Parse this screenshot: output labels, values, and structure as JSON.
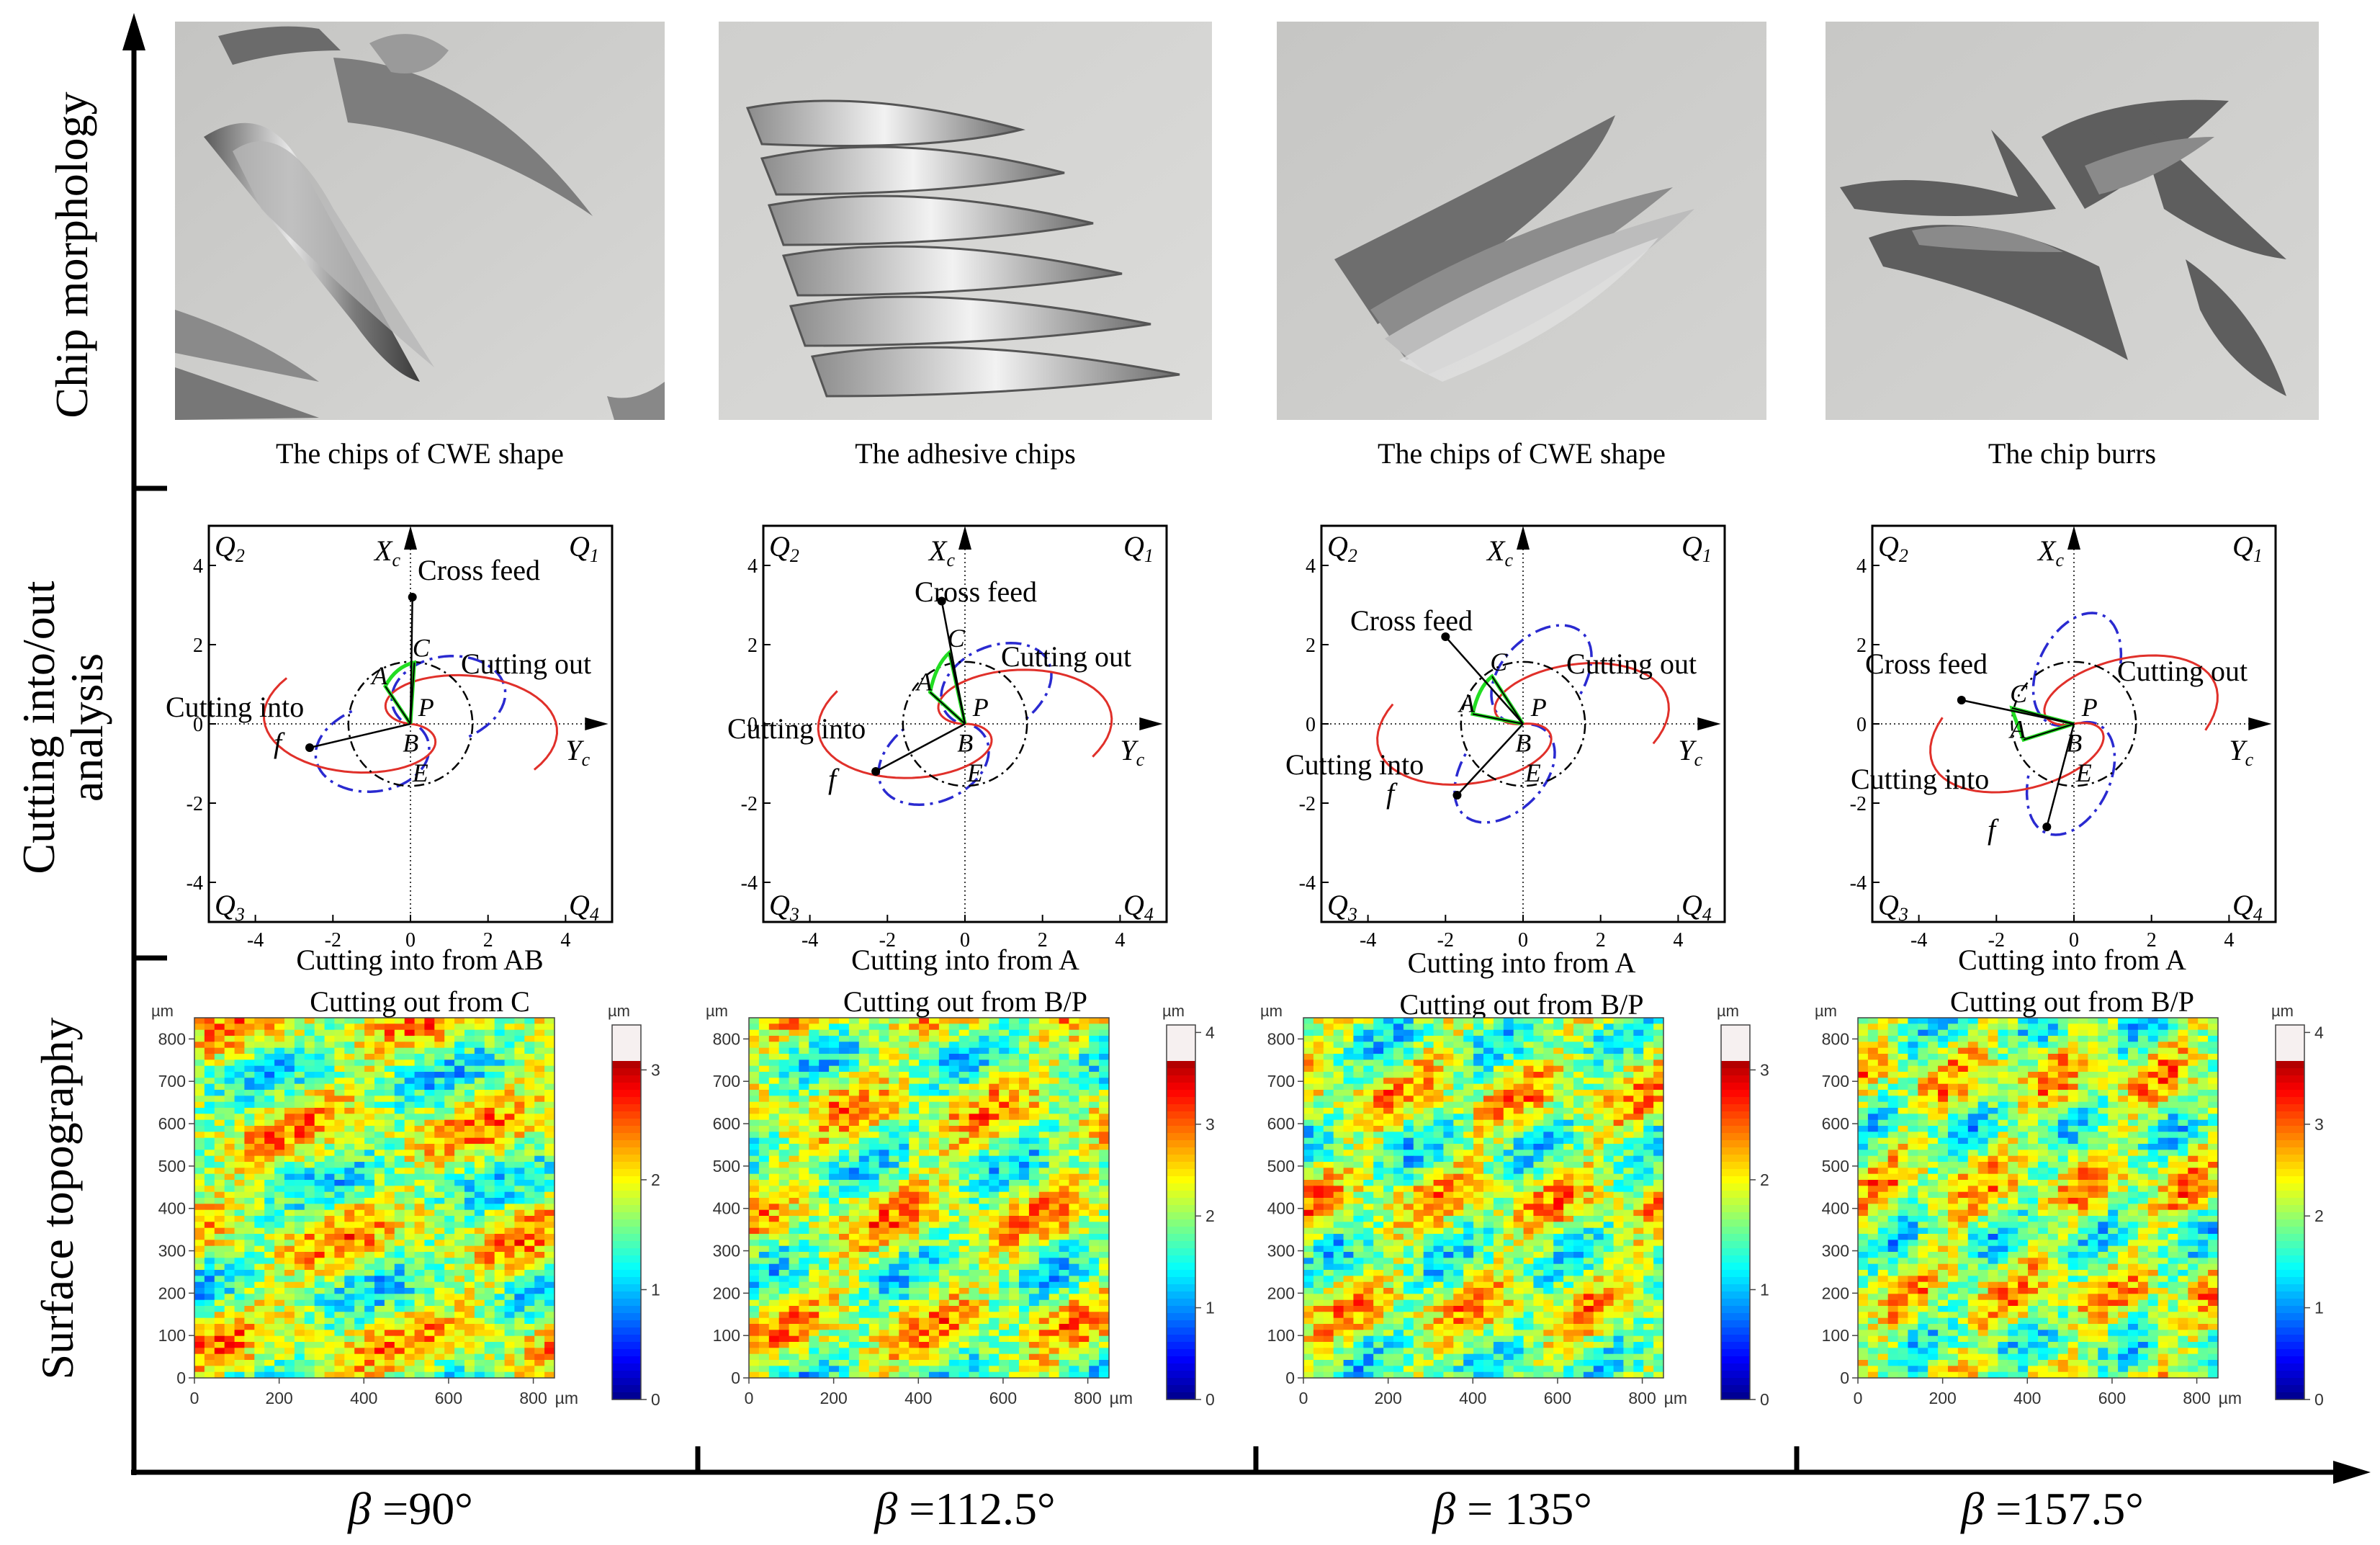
{
  "rows": {
    "chip": "Chip morphology",
    "cutting_line1": "Cutting into/out",
    "cutting_line2": "analysis",
    "surface": "Surface topography"
  },
  "columns": [
    {
      "beta_symbol": "β",
      "beta_value": " =90°",
      "chip_caption": "The chips of CWE shape",
      "into_caption": "Cutting into from AB",
      "out_caption": "Cutting out from C",
      "colorbar_ticks": [
        "3",
        "2",
        "1",
        "0"
      ],
      "colorbar_unit": "µm"
    },
    {
      "beta_symbol": "β",
      "beta_value": " =112.5°",
      "chip_caption": "The adhesive chips",
      "into_caption": "Cutting into from A",
      "out_caption": "Cutting out from B/P",
      "colorbar_ticks": [
        "4",
        "3",
        "2",
        "1",
        "0"
      ],
      "colorbar_unit": "µm"
    },
    {
      "beta_symbol": "β",
      "beta_value": " = 135°",
      "chip_caption": "The chips of CWE shape",
      "into_caption": "Cutting into from A",
      "out_caption": "Cutting out from B/P",
      "colorbar_ticks": [
        "3",
        "2",
        "1",
        "0"
      ],
      "colorbar_unit": "µm"
    },
    {
      "beta_symbol": "β",
      "beta_value": " =157.5°",
      "chip_caption": "The chip burrs",
      "into_caption": "Cutting into from A",
      "out_caption": "Cutting out from B/P",
      "colorbar_ticks": [
        "4",
        "3",
        "2",
        "1",
        "0"
      ],
      "colorbar_unit": "µm"
    }
  ],
  "analysis_labels": {
    "q1": "Q",
    "q1_sub": "1",
    "q2": "Q",
    "q2_sub": "2",
    "q3": "Q",
    "q3_sub": "3",
    "q4": "Q",
    "q4_sub": "4",
    "xc": "X",
    "xc_sub": "c",
    "yc": "Y",
    "yc_sub": "c",
    "cross_feed": "Cross feed",
    "cutting_out": "Cutting out",
    "cutting_into": "Cutting into",
    "feed": "f",
    "pt_a": "A",
    "pt_b": "B",
    "pt_c": "C",
    "pt_p": "P",
    "pt_e": "E",
    "x_ticks": [
      "-4",
      "-2",
      "0",
      "2",
      "4"
    ],
    "y_ticks": [
      "4",
      "2",
      "0",
      "-2",
      "-4"
    ]
  },
  "topography": {
    "ticks": [
      "0",
      "100",
      "200",
      "300",
      "400",
      "500",
      "600",
      "700",
      "800"
    ],
    "x_ticks": [
      "0",
      "200",
      "400",
      "600",
      "800"
    ],
    "x_unit": "µm",
    "y_unit": "µm"
  },
  "colors": {
    "curve_red": "#e0302a",
    "curve_blue": "#2a2ad0",
    "arc_green": "#22dd22"
  }
}
